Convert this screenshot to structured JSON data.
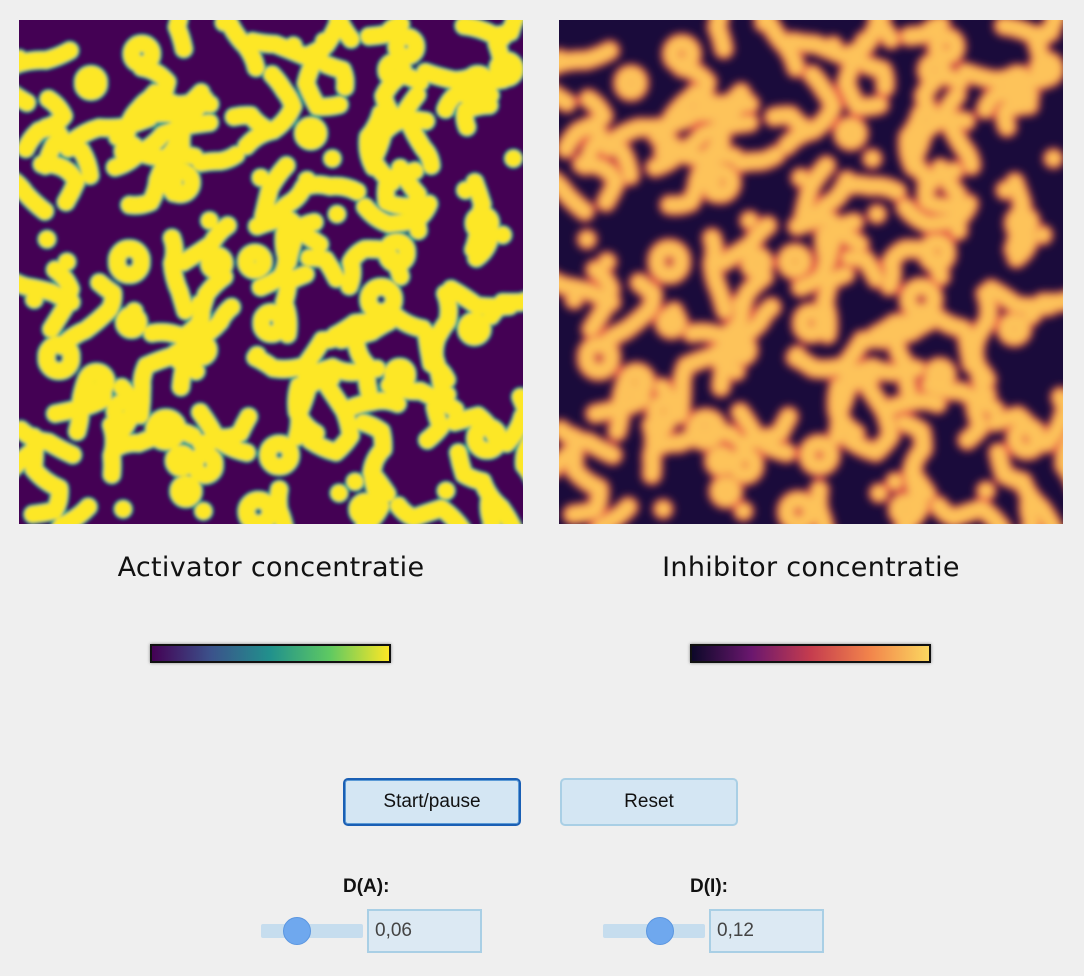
{
  "panels": {
    "activator": {
      "title": "Activator concentratie",
      "colormap": [
        "#440154",
        "#3b528b",
        "#21918c",
        "#5ec962",
        "#fde725"
      ],
      "pattern_color": "#fde725",
      "edge_color": "#21a08a",
      "background_color": "#440154"
    },
    "inhibitor": {
      "title": "Inhibitor concentratie",
      "colormap": [
        "#0d0829",
        "#6a176e",
        "#c53c4e",
        "#f2844b",
        "#fbd760"
      ],
      "pattern_color": "#fdc35a",
      "edge_color": "#e8544a",
      "background_color": "#1a0b3b"
    }
  },
  "buttons": {
    "start_pause": "Start/pause",
    "reset": "Reset"
  },
  "sliders": {
    "diffusion_a": {
      "label": "D(A):",
      "value": "0,06",
      "level": 0.35
    },
    "diffusion_i": {
      "label": "D(I):",
      "value": "0,12",
      "level": 0.58
    }
  }
}
